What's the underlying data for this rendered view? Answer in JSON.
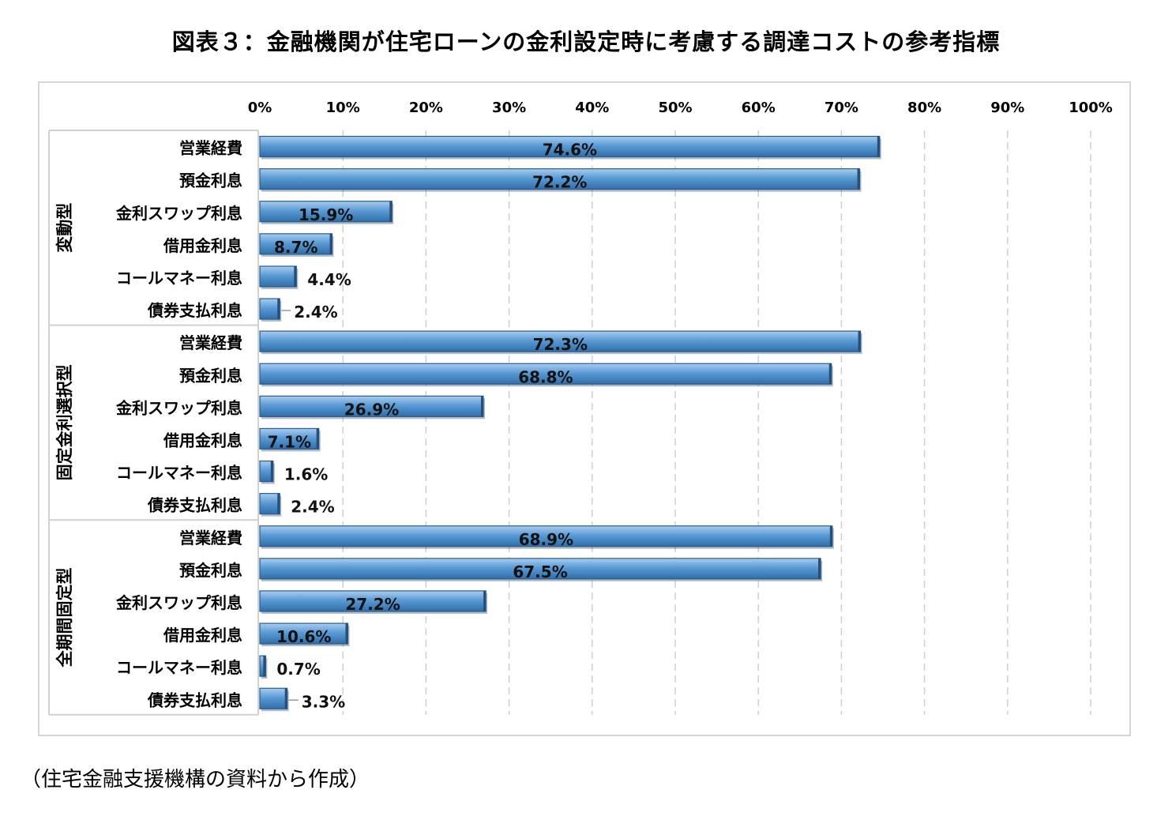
{
  "title": "図表３：金融機関が住宅ローンの金利設定時に考慮する調達コストの参考指標",
  "source": "（住宅金融支援機構の資料から作成）",
  "chart_data": {
    "type": "bar",
    "orientation": "horizontal",
    "xlim": [
      0,
      100
    ],
    "x_ticks": [
      "0%",
      "10%",
      "20%",
      "30%",
      "40%",
      "50%",
      "60%",
      "70%",
      "80%",
      "90%",
      "100%"
    ],
    "grid": "vertical-dashed",
    "bar_color": "#5b9bd5",
    "groups": [
      {
        "name": "変動型",
        "categories": [
          "営業経費",
          "預金利息",
          "金利スワップ利息",
          "借用金利息",
          "コールマネー利息",
          "債券支払利息"
        ],
        "values": [
          74.6,
          72.2,
          15.9,
          8.7,
          4.4,
          2.4
        ],
        "labels": [
          "74.6%",
          "72.2%",
          "15.9%",
          "8.7%",
          "4.4%",
          "2.4%"
        ]
      },
      {
        "name": "固定金利選択型",
        "categories": [
          "営業経費",
          "預金利息",
          "金利スワップ利息",
          "借用金利息",
          "コールマネー利息",
          "債券支払利息"
        ],
        "values": [
          72.3,
          68.8,
          26.9,
          7.1,
          1.6,
          2.4
        ],
        "labels": [
          "72.3%",
          "68.8%",
          "26.9%",
          "7.1%",
          "1.6%",
          "2.4%"
        ]
      },
      {
        "name": "全期間固定型",
        "categories": [
          "営業経費",
          "預金利息",
          "金利スワップ利息",
          "借用金利息",
          "コールマネー利息",
          "債券支払利息"
        ],
        "values": [
          68.9,
          67.5,
          27.2,
          10.6,
          0.7,
          3.3
        ],
        "labels": [
          "68.9%",
          "67.5%",
          "27.2%",
          "10.6%",
          "0.7%",
          "3.3%"
        ]
      }
    ]
  }
}
